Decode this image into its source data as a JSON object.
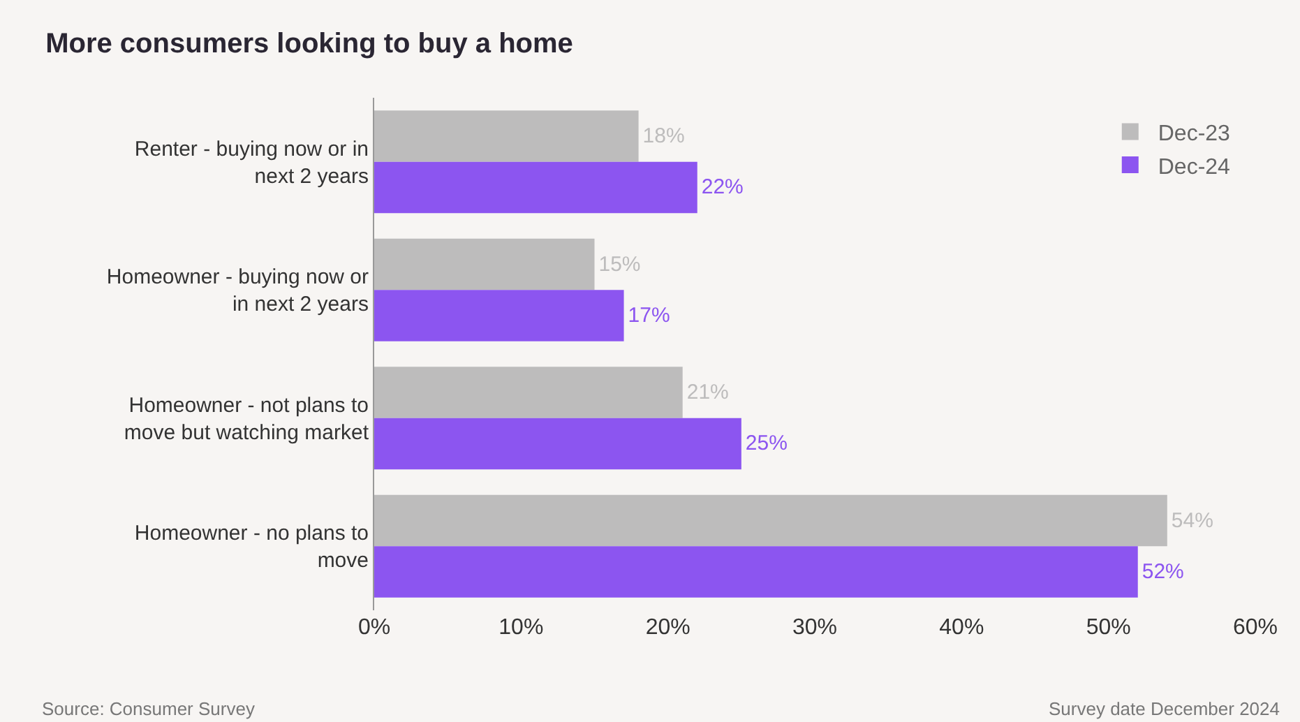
{
  "chart_data": {
    "type": "bar",
    "orientation": "horizontal",
    "title": "More consumers looking to buy a home",
    "categories": [
      "Renter - buying now or in next 2 years",
      "Homeowner - buying now or in next 2 years",
      "Homeowner - not plans to move but watching market",
      "Homeowner - no plans to move"
    ],
    "series": [
      {
        "name": "Dec-23",
        "color": "#bdbcbc",
        "values": [
          18,
          15,
          21,
          54
        ],
        "value_labels": [
          "18%",
          "15%",
          "21%",
          "54%"
        ]
      },
      {
        "name": "Dec-24",
        "color": "#8c55f0",
        "values": [
          22,
          17,
          25,
          52
        ],
        "value_labels": [
          "22%",
          "17%",
          "25%",
          "52%"
        ]
      }
    ],
    "xlim": [
      0,
      60
    ],
    "xticks": [
      {
        "value": 0,
        "label": "0%"
      },
      {
        "value": 10,
        "label": "10%"
      },
      {
        "value": 20,
        "label": "20%"
      },
      {
        "value": 30,
        "label": "30%"
      },
      {
        "value": 40,
        "label": "40%"
      },
      {
        "value": 50,
        "label": "50%"
      },
      {
        "value": 60,
        "label": "60%"
      }
    ],
    "legend": "top right",
    "grid": false,
    "annotations": [
      "Source: Consumer Survey",
      "Survey date December 2024"
    ]
  }
}
